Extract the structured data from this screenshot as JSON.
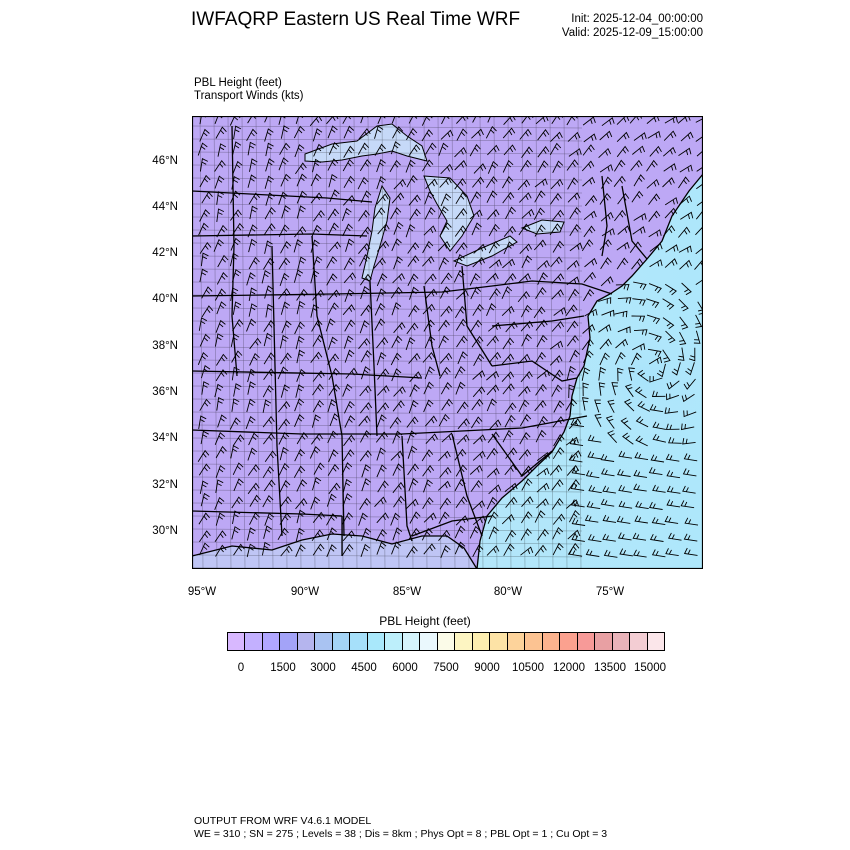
{
  "header": {
    "title": "IWFAQRP Eastern US Real Time WRF",
    "init": "Init: 2025-12-04_00:00:00",
    "valid": "Valid: 2025-12-09_15:00:00"
  },
  "subtitle": {
    "line1": "PBL Height   (feet)",
    "line2": "Transport Winds   (kts)"
  },
  "map": {
    "lat_ticks": [
      "46°N",
      "44°N",
      "42°N",
      "40°N",
      "38°N",
      "36°N",
      "34°N",
      "32°N",
      "30°N"
    ],
    "lon_ticks": [
      "95°W",
      "90°W",
      "85°W",
      "80°W",
      "75°W"
    ],
    "colors": {
      "land_field": "#bda8f5",
      "ocean_field": "#b4e6fa",
      "lakes": "#c6d9f8",
      "lines": "#000000"
    }
  },
  "colorbar": {
    "title": "PBL Height  (feet)",
    "labels": [
      "0",
      "1500",
      "3000",
      "4500",
      "6000",
      "7500",
      "9000",
      "10500",
      "12000",
      "13500",
      "15000"
    ],
    "colors": [
      "#d8b8ff",
      "#c3b0ff",
      "#b1a6ff",
      "#a3a3f8",
      "#b5b5ee",
      "#a9c3f2",
      "#a4d4f6",
      "#a6e0fa",
      "#a9e8fb",
      "#bdeffb",
      "#d5f4fc",
      "#eaf8fd",
      "#fbfbe8",
      "#fdf5c2",
      "#fdeeb0",
      "#fde3a6",
      "#fdd39b",
      "#fcc392",
      "#fcb38e",
      "#fba18f",
      "#f79a98",
      "#e8a0a3",
      "#e9b3b9",
      "#f3cdd3",
      "#fbe6ea"
    ]
  },
  "footer": {
    "line1": "OUTPUT FROM WRF V4.6.1 MODEL",
    "line2": "WE = 310 ; SN = 275 ; Levels = 38 ; Dis = 8km ; Phys Opt = 8 ; PBL Opt = 1 ; Cu Opt = 3"
  }
}
